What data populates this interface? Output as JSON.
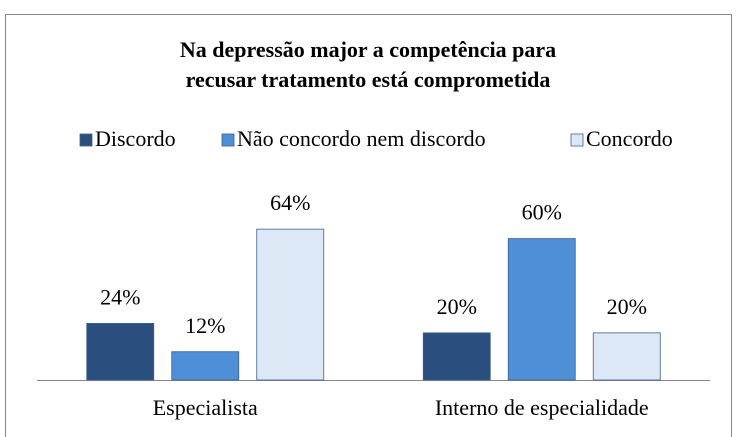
{
  "chart_data": {
    "type": "bar",
    "title": [
      "Na depressão major a competência para",
      "recusar tratamento está comprometida"
    ],
    "categories": [
      "Especialista",
      "Interno de especialidade"
    ],
    "series": [
      {
        "name": "Discordo",
        "color": "#2a4f7f",
        "values": [
          24,
          20
        ],
        "value_labels": [
          "24%",
          "20%"
        ]
      },
      {
        "name": "Não concordo nem discordo",
        "color": "#4f8fd8",
        "values": [
          12,
          60
        ],
        "value_labels": [
          "12%",
          "60%"
        ]
      },
      {
        "name": "Concordo",
        "color": "#dde8f7",
        "values": [
          64,
          20
        ],
        "value_labels": [
          "64%",
          "20%"
        ]
      }
    ],
    "ylim": [
      0,
      70
    ],
    "legend": "top"
  }
}
